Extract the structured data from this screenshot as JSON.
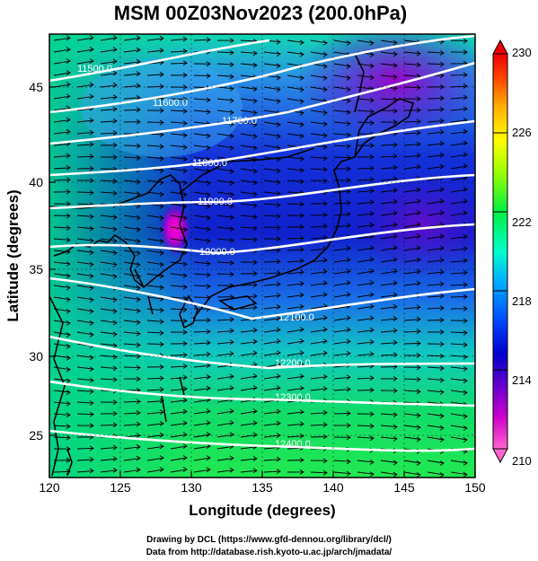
{
  "title": "MSM 00Z03Nov2023 (200.0hPa)",
  "xlabel": "Longitude (degrees)",
  "ylabel": "Latitude  (degrees)",
  "x_ticks": [
    "120",
    "125",
    "130",
    "135",
    "140",
    "145",
    "150"
  ],
  "y_ticks": [
    "25",
    "30",
    "35",
    "40",
    "45"
  ],
  "colorbar": {
    "ticks": [
      "210",
      "214",
      "218",
      "222",
      "226",
      "230"
    ],
    "colors": [
      "#ff66cc",
      "#cc00cc",
      "#6600cc",
      "#0000cc",
      "#0044ff",
      "#00ccff",
      "#00ffcc",
      "#00ee44",
      "#99ff00",
      "#ffff00",
      "#ffaa00",
      "#ff4400",
      "#ee0000"
    ]
  },
  "contours": [
    {
      "value": 11500,
      "label": "11500.0"
    },
    {
      "value": 11600,
      "label": "11600.0"
    },
    {
      "value": 11700,
      "label": "11700.0"
    },
    {
      "value": 11800,
      "label": "11800.0"
    },
    {
      "value": 11900,
      "label": "11900.0"
    },
    {
      "value": 12000,
      "label": "12000.0"
    },
    {
      "value": 12100,
      "label": "12100.0"
    },
    {
      "value": 12200,
      "label": "12200.0"
    },
    {
      "value": 12300,
      "label": "12300.0"
    },
    {
      "value": 12400,
      "label": "12400.0"
    }
  ],
  "credits": {
    "line1": "Drawing by DCL (https://www.gfd-dennou.org/library/dcl/)",
    "line2": "Data from http://database.rish.kyoto-u.ac.jp/arch/jmadata/"
  },
  "chart_data": {
    "type": "heatmap",
    "title": "MSM 00Z03Nov2023 (200.0hPa)",
    "xlabel": "Longitude (degrees)",
    "ylabel": "Latitude  (degrees)",
    "xlim": [
      120,
      150
    ],
    "ylim": [
      22.5,
      47.5
    ],
    "color_range": [
      210,
      230
    ],
    "contour_values": [
      11500,
      11600,
      11700,
      11800,
      11900,
      12000,
      12100,
      12200,
      12300,
      12400
    ],
    "wind": "westerly vectors"
  }
}
